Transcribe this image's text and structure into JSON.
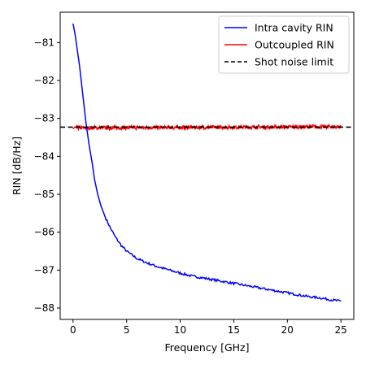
{
  "chart_data": {
    "type": "line",
    "xlabel": "Frequency [GHz]",
    "ylabel": "RIN [dB/Hz]",
    "xlim": [
      -1.2,
      26.2
    ],
    "ylim": [
      -88.3,
      -80.2
    ],
    "xticks": [
      0,
      5,
      10,
      15,
      20,
      25
    ],
    "yticks": [
      -81,
      -82,
      -83,
      -84,
      -85,
      -86,
      -87,
      -88
    ],
    "xtick_labels": [
      "0",
      "5",
      "10",
      "15",
      "20",
      "25"
    ],
    "ytick_labels": [
      "−81",
      "−82",
      "−83",
      "−84",
      "−85",
      "−86",
      "−87",
      "−88"
    ],
    "grid": false,
    "legend_position": "upper-right",
    "series": [
      {
        "name": "Intra cavity RIN",
        "color": "#0000ff",
        "style": "solid",
        "x": [
          0,
          0.2,
          0.4,
          0.6,
          0.8,
          1.0,
          1.2,
          1.5,
          1.8,
          2.0,
          2.3,
          2.6,
          3.0,
          3.5,
          4.0,
          4.5,
          5.0,
          5.5,
          6.0,
          7.0,
          8.0,
          9.0,
          10.0,
          11.0,
          12.0,
          13.0,
          14.0,
          15.0,
          16.0,
          17.0,
          18.0,
          19.0,
          20.0,
          21.0,
          22.0,
          23.0,
          24.0,
          25.0
        ],
        "y": [
          -80.5,
          -80.8,
          -81.2,
          -81.6,
          -82.1,
          -82.6,
          -83.1,
          -83.7,
          -84.2,
          -84.6,
          -85.0,
          -85.3,
          -85.6,
          -85.9,
          -86.15,
          -86.35,
          -86.5,
          -86.6,
          -86.7,
          -86.82,
          -86.92,
          -87.0,
          -87.08,
          -87.15,
          -87.2,
          -87.25,
          -87.3,
          -87.35,
          -87.4,
          -87.45,
          -87.5,
          -87.55,
          -87.6,
          -87.65,
          -87.7,
          -87.73,
          -87.78,
          -87.82
        ]
      },
      {
        "name": "Outcoupled RIN",
        "color": "#ff0000",
        "style": "solid",
        "x": [
          0,
          25
        ],
        "y": [
          -83.25,
          -83.22
        ],
        "noise": 0.05
      },
      {
        "name": "Shot noise limit",
        "color": "#000000",
        "style": "dashed",
        "x": [
          -1.2,
          26.2
        ],
        "y": [
          -83.23,
          -83.23
        ]
      }
    ]
  }
}
